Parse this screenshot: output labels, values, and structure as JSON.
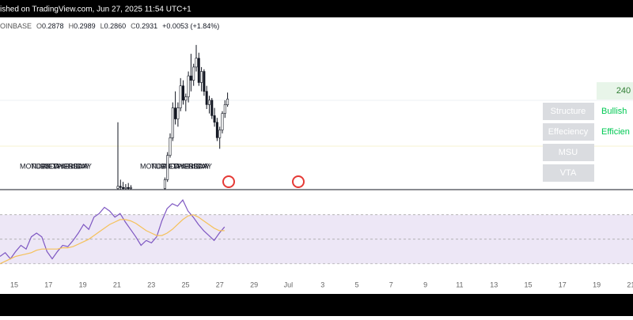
{
  "header": {
    "title": "ished on TradingView.com, Jun 27, 2025 11:54 UTC+1"
  },
  "legend": {
    "symbol": "OINBASE",
    "o_label": "O",
    "open": "0.2878",
    "h_label": "H",
    "high": "0.2989",
    "l_label": "L",
    "low": "0.2860",
    "c_label": "C",
    "close": "0.2931",
    "change": "+0.0053 (+1.84%)"
  },
  "panel": {
    "top": "240",
    "rows": [
      [
        "Structure",
        "Bullish"
      ],
      [
        "Effeciency",
        "Efficien"
      ],
      [
        "MSU",
        ""
      ],
      [
        "VTA",
        ""
      ]
    ]
  },
  "day_labels": [
    [
      "MONDAY",
      "TUESDAY",
      "WEDNESDAY",
      "THURSDAY",
      "FRIDAY"
    ],
    [
      "MONDAY",
      "TUESDAY",
      "WEDNESDAY",
      "THURSDAY",
      "FRIDAY"
    ]
  ],
  "x_labels": [
    "15",
    "17",
    "19",
    "21",
    "23",
    "25",
    "27",
    "29",
    "Jul",
    "3",
    "5",
    "7",
    "9",
    "11",
    "13",
    "15",
    "17",
    "19",
    "21"
  ],
  "chart_data": [
    {
      "type": "candlestick",
      "ylim": [
        0.211,
        0.367
      ],
      "up_color": "#ffffff",
      "down_color": "#131722",
      "open": [
        0.212,
        0.214,
        0.213,
        0.212,
        0.213,
        0.212,
        null,
        null,
        null,
        null,
        null,
        null,
        null,
        null,
        null,
        null,
        null,
        null,
        0.212,
        0.22,
        0.242,
        0.258,
        0.285,
        0.275,
        0.285,
        0.305,
        0.292,
        0.295,
        0.314,
        0.31,
        0.322,
        0.33,
        0.308,
        0.318,
        0.3,
        0.288,
        0.292,
        0.278,
        0.272,
        0.258,
        0.265,
        0.28,
        0.2878
      ],
      "high": [
        0.272,
        0.22,
        0.218,
        0.216,
        0.217,
        0.215,
        null,
        null,
        null,
        null,
        null,
        null,
        null,
        null,
        null,
        null,
        null,
        null,
        0.222,
        0.245,
        0.262,
        0.29,
        0.3,
        0.29,
        0.312,
        0.31,
        0.298,
        0.318,
        0.334,
        0.325,
        0.342,
        0.335,
        0.322,
        0.32,
        0.305,
        0.296,
        0.294,
        0.285,
        0.276,
        0.268,
        0.282,
        0.292,
        0.2989
      ],
      "low": [
        0.21,
        0.21,
        0.209,
        0.209,
        0.21,
        0.209,
        null,
        null,
        null,
        null,
        null,
        null,
        null,
        null,
        null,
        null,
        null,
        null,
        0.21,
        0.218,
        0.24,
        0.255,
        0.27,
        0.268,
        0.282,
        0.288,
        0.282,
        0.29,
        0.3,
        0.305,
        0.318,
        0.305,
        0.3,
        0.296,
        0.284,
        0.28,
        0.275,
        0.268,
        0.255,
        0.248,
        0.262,
        0.276,
        0.286
      ],
      "close": [
        0.214,
        0.213,
        0.212,
        0.213,
        0.212,
        0.213,
        null,
        null,
        null,
        null,
        null,
        null,
        null,
        null,
        null,
        null,
        null,
        null,
        0.22,
        0.242,
        0.258,
        0.285,
        0.275,
        0.285,
        0.305,
        0.292,
        0.295,
        0.314,
        0.31,
        0.322,
        0.33,
        0.308,
        0.318,
        0.3,
        0.288,
        0.292,
        0.278,
        0.272,
        0.258,
        0.265,
        0.28,
        0.288,
        0.2931
      ]
    },
    {
      "type": "line",
      "ylim": [
        26,
        84
      ],
      "levels": [
        30,
        50,
        70
      ],
      "band_color": "#ede7f6",
      "series": [
        {
          "color": "#7e57c2",
          "values": [
            36,
            39,
            34,
            40,
            45,
            42,
            52,
            55,
            52,
            40,
            34,
            40,
            45,
            44,
            49,
            55,
            62,
            58,
            68,
            71,
            76,
            73,
            68,
            71,
            64,
            58,
            52,
            45,
            49,
            47,
            52,
            65,
            75,
            79,
            77,
            82,
            73,
            68,
            62,
            57,
            53,
            49,
            55,
            60
          ]
        },
        {
          "color": "#f5c15a",
          "values": [
            30,
            32,
            34,
            36,
            37,
            38,
            39,
            41,
            42,
            42,
            42,
            42,
            43,
            43,
            44,
            46,
            48,
            50,
            53,
            56,
            59,
            62,
            64,
            66,
            66,
            65,
            63,
            60,
            57,
            55,
            53,
            53,
            55,
            58,
            62,
            66,
            69,
            70,
            68,
            65,
            62,
            59,
            57,
            57
          ]
        }
      ]
    }
  ]
}
